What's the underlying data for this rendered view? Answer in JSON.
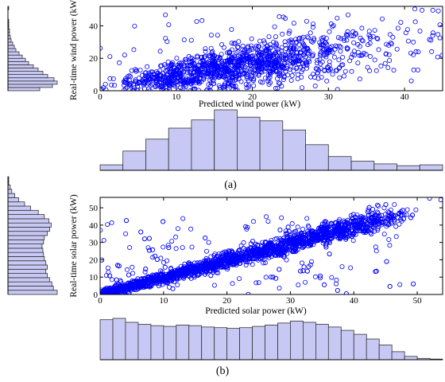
{
  "chart_data": [
    {
      "panel": "(a)",
      "type": "scatter",
      "xlabel": "Predicted wind power (kW)",
      "ylabel": "Real-time wind power (kW)",
      "xlim": [
        0,
        45
      ],
      "ylim": [
        0,
        52
      ],
      "xticks": [
        "0",
        "10",
        "20",
        "30",
        "40"
      ],
      "yticks": [
        "0",
        "20",
        "40"
      ],
      "marker": "open-circle",
      "color": "#0000ff",
      "histogram_fill": "#c8c8f5",
      "x_histogram": {
        "edges": [
          0,
          3,
          6,
          9,
          12,
          15,
          18,
          21,
          24,
          27,
          30,
          33,
          36,
          39,
          42,
          45
        ],
        "counts": [
          6,
          21,
          34,
          46,
          55,
          66,
          58,
          54,
          44,
          28,
          15,
          10,
          7,
          5,
          6
        ]
      },
      "y_histogram": {
        "edges": [
          0,
          2,
          4,
          6,
          8,
          10,
          12,
          14,
          16,
          18,
          20,
          22,
          24,
          26,
          28,
          30,
          32,
          34,
          36,
          38,
          40,
          42,
          44,
          46,
          48,
          50,
          52
        ],
        "counts": [
          40,
          56,
          62,
          58,
          50,
          44,
          38,
          32,
          26,
          22,
          18,
          14,
          10,
          8,
          6,
          4,
          3,
          2,
          2,
          1,
          1,
          1,
          0,
          0,
          0,
          1
        ]
      }
    },
    {
      "panel": "(b)",
      "type": "scatter",
      "xlabel": "Predicted solar power (kW)",
      "ylabel": "Real-time solar power (kW)",
      "xlim": [
        0,
        54
      ],
      "ylim": [
        0,
        56
      ],
      "xticks": [
        "0",
        "10",
        "20",
        "30",
        "40",
        "50"
      ],
      "yticks": [
        "0",
        "10",
        "20",
        "30",
        "40",
        "50"
      ],
      "marker": "open-circle",
      "color": "#0000ff",
      "histogram_fill": "#c8c8f5",
      "x_histogram": {
        "edges": [
          0,
          2,
          4,
          6,
          8,
          10,
          12,
          14,
          16,
          18,
          20,
          22,
          24,
          26,
          28,
          30,
          32,
          34,
          36,
          38,
          40,
          42,
          44,
          46,
          48,
          50,
          52,
          54
        ],
        "counts": [
          60,
          62,
          56,
          53,
          51,
          50,
          52,
          51,
          49,
          48,
          47,
          48,
          50,
          52,
          55,
          58,
          56,
          53,
          49,
          44,
          38,
          31,
          22,
          12,
          5,
          2,
          1
        ]
      },
      "y_histogram": {
        "edges": [
          0,
          2,
          4,
          6,
          8,
          10,
          12,
          14,
          16,
          18,
          20,
          22,
          24,
          26,
          28,
          30,
          32,
          34,
          36,
          38,
          40,
          42,
          44,
          46,
          48,
          50,
          52,
          54,
          56
        ],
        "counts": [
          65,
          60,
          58,
          55,
          52,
          50,
          52,
          50,
          48,
          47,
          46,
          45,
          47,
          48,
          52,
          55,
          57,
          54,
          48,
          40,
          30,
          22,
          14,
          9,
          5,
          3,
          1,
          1
        ]
      }
    }
  ]
}
